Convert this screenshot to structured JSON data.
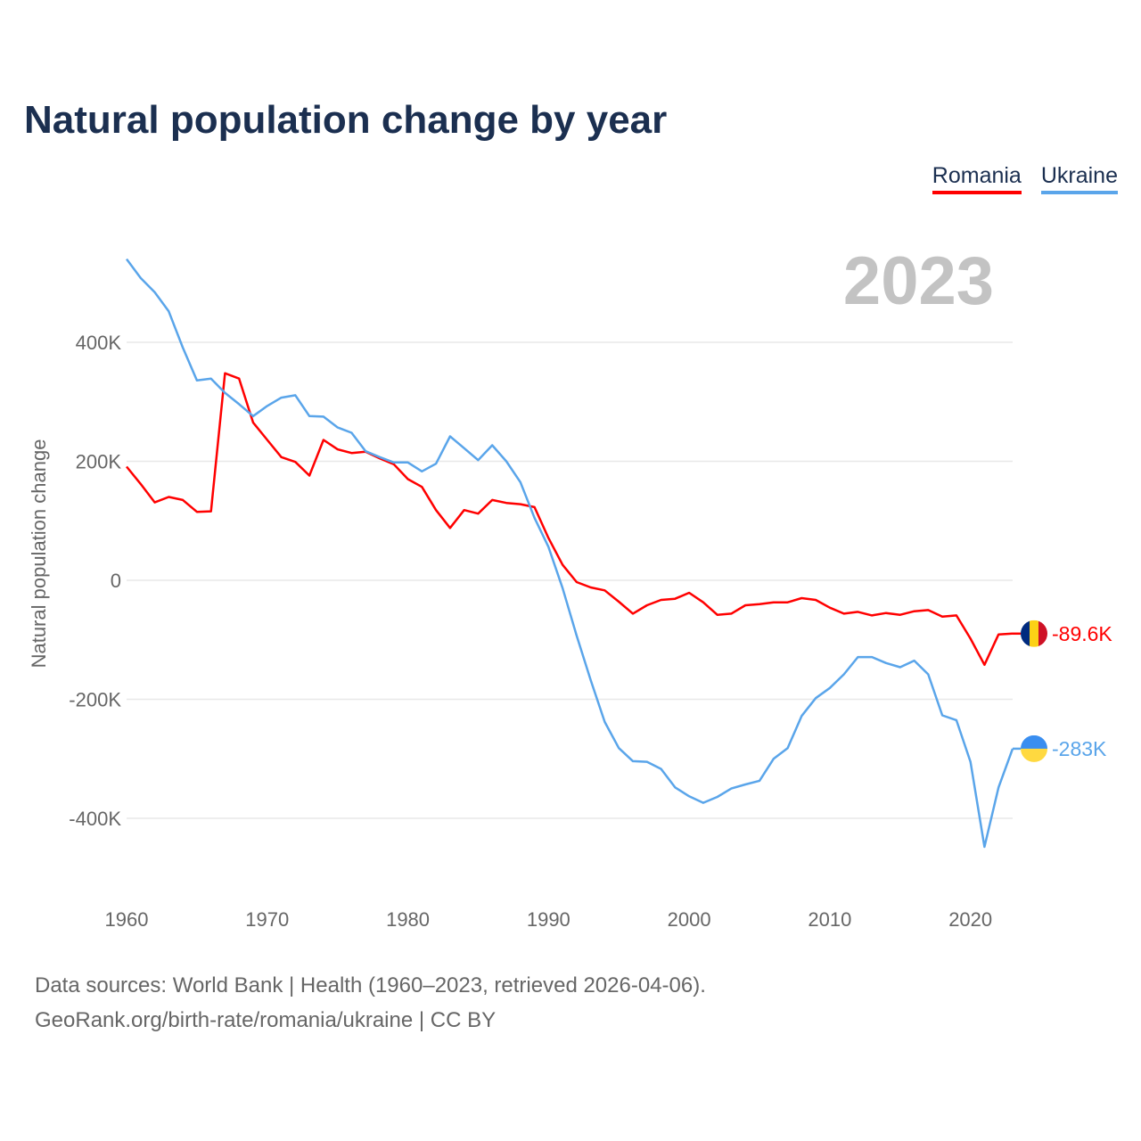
{
  "title": "Natural population change by year",
  "current_year_label": "2023",
  "footer": {
    "line1": "Data sources: World Bank | Health (1960–2023, retrieved 2026-04-06).",
    "line2": "GeoRank.org/birth-rate/romania/ukraine | CC BY"
  },
  "chart_data": {
    "type": "line",
    "title": "Natural population change by year",
    "xlabel": "",
    "ylabel": "Natural population change",
    "xlim": [
      1960,
      2023
    ],
    "ylim": [
      -500000,
      560000
    ],
    "x_ticks": [
      1960,
      1970,
      1980,
      1990,
      2000,
      2010,
      2020
    ],
    "x_tick_labels": [
      "1960",
      "1970",
      "1980",
      "1990",
      "2000",
      "2010",
      "2020"
    ],
    "y_ticks": [
      400000,
      200000,
      0,
      -200000,
      -400000
    ],
    "y_tick_labels": [
      "400K",
      "200K",
      "0",
      "-200K",
      "-400K"
    ],
    "grid": true,
    "legend_placement": "top-right",
    "x": [
      1960,
      1961,
      1962,
      1963,
      1964,
      1965,
      1966,
      1967,
      1968,
      1969,
      1970,
      1971,
      1972,
      1973,
      1974,
      1975,
      1976,
      1977,
      1978,
      1979,
      1980,
      1981,
      1982,
      1983,
      1984,
      1985,
      1986,
      1987,
      1988,
      1989,
      1990,
      1991,
      1992,
      1993,
      1994,
      1995,
      1996,
      1997,
      1998,
      1999,
      2000,
      2001,
      2002,
      2003,
      2004,
      2005,
      2006,
      2007,
      2008,
      2009,
      2010,
      2011,
      2012,
      2013,
      2014,
      2015,
      2016,
      2017,
      2018,
      2019,
      2020,
      2021,
      2022,
      2023
    ],
    "series": [
      {
        "name": "Romania",
        "color": "#ff0000",
        "end_label": "-89.6K",
        "flag": [
          "#002b7f",
          "#fcd116",
          "#ce1126"
        ],
        "values": [
          191000,
          162000,
          131000,
          140000,
          135000,
          115000,
          116000,
          348000,
          339000,
          265000,
          236000,
          207000,
          199000,
          176000,
          236000,
          220000,
          214000,
          216000,
          205000,
          195000,
          170000,
          157000,
          118000,
          88000,
          118000,
          112000,
          135000,
          130000,
          128000,
          123000,
          71000,
          26000,
          -3000,
          -12000,
          -17000,
          -36000,
          -56000,
          -42000,
          -33000,
          -31000,
          -21000,
          -37000,
          -58000,
          -56000,
          -42000,
          -40000,
          -37000,
          -37000,
          -30000,
          -33000,
          -46000,
          -56000,
          -53000,
          -59000,
          -55000,
          -58000,
          -52000,
          -50000,
          -61000,
          -59000,
          -98000,
          -142000,
          -91000,
          -89600
        ]
      },
      {
        "name": "Ukraine",
        "color": "#5aa5ea",
        "end_label": "-283K",
        "flag": [
          "#3a8ef0",
          "#ffd940"
        ],
        "values": [
          540000,
          508000,
          484000,
          452000,
          391000,
          336000,
          339000,
          315000,
          296000,
          276000,
          293000,
          307000,
          311000,
          276000,
          275000,
          257000,
          248000,
          217000,
          207000,
          198000,
          198000,
          183000,
          196000,
          242000,
          222000,
          202000,
          227000,
          200000,
          165000,
          105000,
          56000,
          -13000,
          -93000,
          -168000,
          -238000,
          -282000,
          -304000,
          -305000,
          -317000,
          -348000,
          -363000,
          -374000,
          -364000,
          -350000,
          -343000,
          -337000,
          -300000,
          -282000,
          -228000,
          -198000,
          -181000,
          -158000,
          -129000,
          -129000,
          -139000,
          -146000,
          -135000,
          -158000,
          -227000,
          -235000,
          -305000,
          -448000,
          -348000,
          -283000
        ]
      }
    ]
  }
}
